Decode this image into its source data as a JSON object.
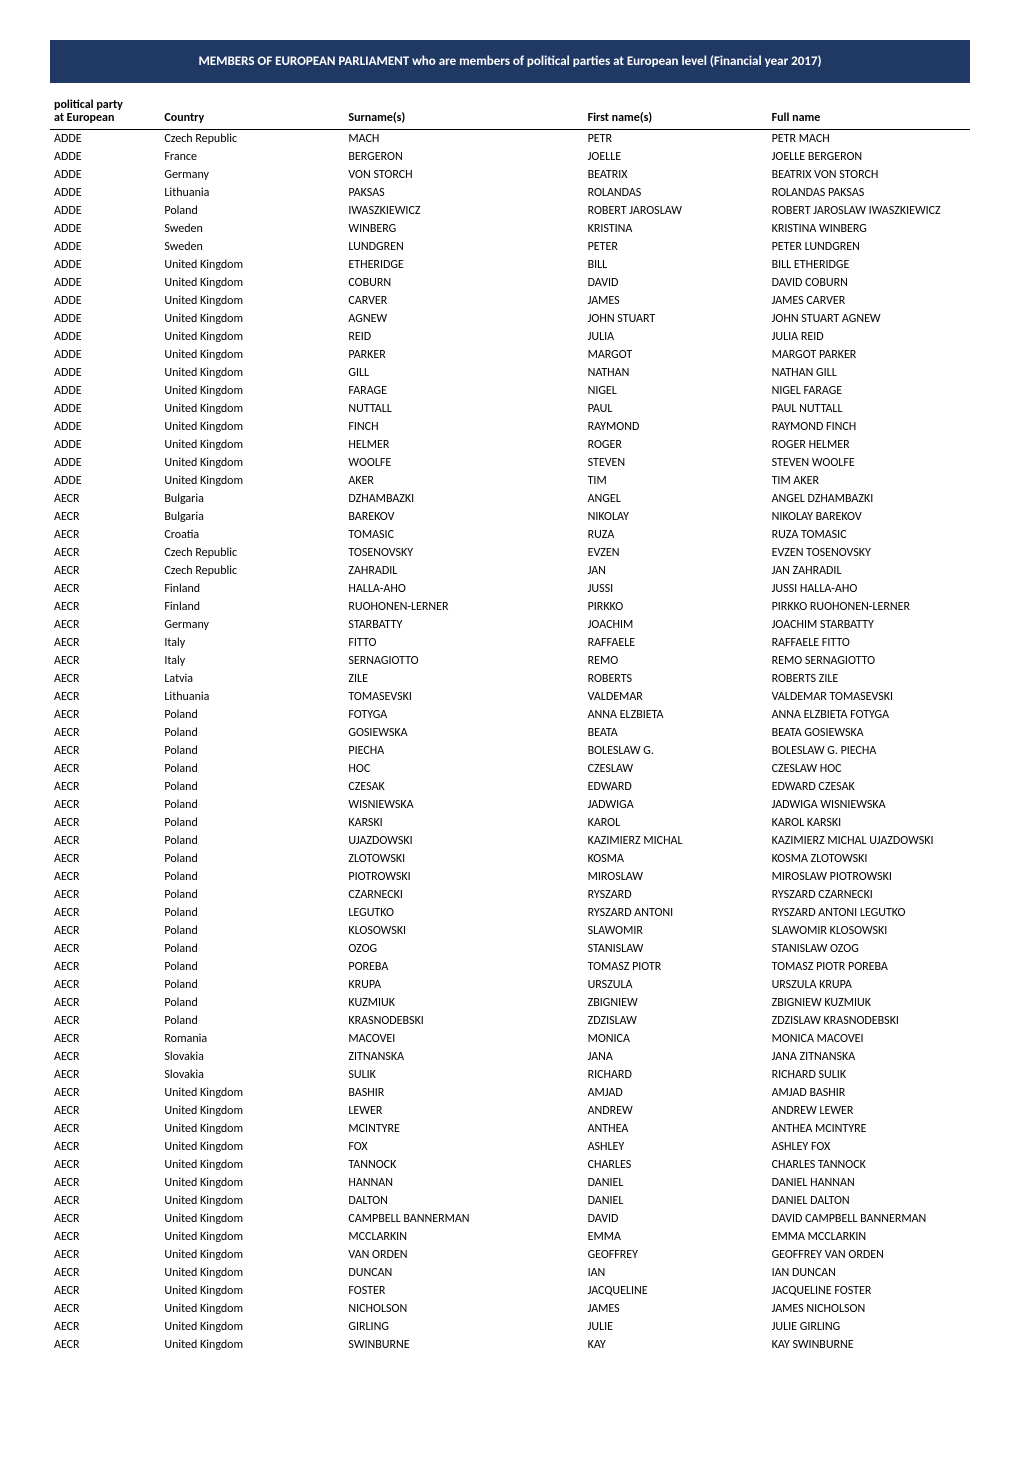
{
  "banner": {
    "text": "MEMBERS OF EUROPEAN PARLIAMENT who are members of political parties at European level (Financial year 2017)",
    "background_color": "#203864",
    "text_color": "#ffffff",
    "font_size_pt": 10,
    "font_weight": "bold"
  },
  "table": {
    "font_size_pt": 9,
    "header_border_color": "#000000",
    "columns": [
      {
        "key": "party",
        "label_line1": "political party",
        "label_line2": "at European",
        "width_pct": 12
      },
      {
        "key": "country",
        "label": "Country",
        "width_pct": 20
      },
      {
        "key": "surname",
        "label": "Surname(s)",
        "width_pct": 26
      },
      {
        "key": "firstname",
        "label": "First name(s)",
        "width_pct": 20
      },
      {
        "key": "fullname",
        "label": "Full name",
        "width_pct": 22
      }
    ],
    "rows": [
      [
        "ADDE",
        "Czech Republic",
        "MACH",
        "PETR",
        "PETR MACH"
      ],
      [
        "ADDE",
        "France",
        "BERGERON",
        "JOELLE",
        "JOELLE BERGERON"
      ],
      [
        "ADDE",
        "Germany",
        "VON STORCH",
        "BEATRIX",
        "BEATRIX VON STORCH"
      ],
      [
        "ADDE",
        "Lithuania",
        "PAKSAS",
        "ROLANDAS",
        "ROLANDAS PAKSAS"
      ],
      [
        "ADDE",
        "Poland",
        "IWASZKIEWICZ",
        "ROBERT JAROSLAW",
        "ROBERT JAROSLAW IWASZKIEWICZ"
      ],
      [
        "ADDE",
        "Sweden",
        "WINBERG",
        "KRISTINA",
        "KRISTINA WINBERG"
      ],
      [
        "ADDE",
        "Sweden",
        "LUNDGREN",
        "PETER",
        "PETER LUNDGREN"
      ],
      [
        "ADDE",
        "United Kingdom",
        "ETHERIDGE",
        "BILL",
        "BILL ETHERIDGE"
      ],
      [
        "ADDE",
        "United Kingdom",
        "COBURN",
        "DAVID",
        "DAVID COBURN"
      ],
      [
        "ADDE",
        "United Kingdom",
        "CARVER",
        "JAMES",
        "JAMES CARVER"
      ],
      [
        "ADDE",
        "United Kingdom",
        "AGNEW",
        "JOHN STUART",
        "JOHN STUART AGNEW"
      ],
      [
        "ADDE",
        "United Kingdom",
        "REID",
        "JULIA",
        "JULIA REID"
      ],
      [
        "ADDE",
        "United Kingdom",
        "PARKER",
        "MARGOT",
        "MARGOT PARKER"
      ],
      [
        "ADDE",
        "United Kingdom",
        "GILL",
        "NATHAN",
        "NATHAN GILL"
      ],
      [
        "ADDE",
        "United Kingdom",
        "FARAGE",
        "NIGEL",
        "NIGEL FARAGE"
      ],
      [
        "ADDE",
        "United Kingdom",
        "NUTTALL",
        "PAUL",
        "PAUL NUTTALL"
      ],
      [
        "ADDE",
        "United Kingdom",
        "FINCH",
        "RAYMOND",
        "RAYMOND FINCH"
      ],
      [
        "ADDE",
        "United Kingdom",
        "HELMER",
        "ROGER",
        "ROGER HELMER"
      ],
      [
        "ADDE",
        "United Kingdom",
        "WOOLFE",
        "STEVEN",
        "STEVEN WOOLFE"
      ],
      [
        "ADDE",
        "United Kingdom",
        "AKER",
        "TIM",
        "TIM AKER"
      ],
      [
        "AECR",
        "Bulgaria",
        "DZHAMBAZKI",
        "ANGEL",
        "ANGEL DZHAMBAZKI"
      ],
      [
        "AECR",
        "Bulgaria",
        "BAREKOV",
        "NIKOLAY",
        "NIKOLAY BAREKOV"
      ],
      [
        "AECR",
        "Croatia",
        "TOMASIC",
        "RUZA",
        "RUZA TOMASIC"
      ],
      [
        "AECR",
        "Czech Republic",
        "TOSENOVSKY",
        "EVZEN",
        "EVZEN TOSENOVSKY"
      ],
      [
        "AECR",
        "Czech Republic",
        "ZAHRADIL",
        "JAN",
        "JAN ZAHRADIL"
      ],
      [
        "AECR",
        "Finland",
        "HALLA-AHO",
        "JUSSI",
        "JUSSI HALLA-AHO"
      ],
      [
        "AECR",
        "Finland",
        "RUOHONEN-LERNER",
        "PIRKKO",
        "PIRKKO RUOHONEN-LERNER"
      ],
      [
        "AECR",
        "Germany",
        "STARBATTY",
        "JOACHIM",
        "JOACHIM STARBATTY"
      ],
      [
        "AECR",
        "Italy",
        "FITTO",
        "RAFFAELE",
        "RAFFAELE FITTO"
      ],
      [
        "AECR",
        "Italy",
        "SERNAGIOTTO",
        "REMO",
        "REMO SERNAGIOTTO"
      ],
      [
        "AECR",
        "Latvia",
        "ZILE",
        "ROBERTS",
        "ROBERTS ZILE"
      ],
      [
        "AECR",
        "Lithuania",
        "TOMASEVSKI",
        "VALDEMAR",
        "VALDEMAR TOMASEVSKI"
      ],
      [
        "AECR",
        "Poland",
        "FOTYGA",
        "ANNA ELZBIETA",
        "ANNA ELZBIETA FOTYGA"
      ],
      [
        "AECR",
        "Poland",
        "GOSIEWSKA",
        "BEATA",
        "BEATA GOSIEWSKA"
      ],
      [
        "AECR",
        "Poland",
        "PIECHA",
        "BOLESLAW G.",
        "BOLESLAW G. PIECHA"
      ],
      [
        "AECR",
        "Poland",
        "HOC",
        "CZESLAW",
        "CZESLAW HOC"
      ],
      [
        "AECR",
        "Poland",
        "CZESAK",
        "EDWARD",
        "EDWARD CZESAK"
      ],
      [
        "AECR",
        "Poland",
        "WISNIEWSKA",
        "JADWIGA",
        "JADWIGA WISNIEWSKA"
      ],
      [
        "AECR",
        "Poland",
        "KARSKI",
        "KAROL",
        "KAROL KARSKI"
      ],
      [
        "AECR",
        "Poland",
        "UJAZDOWSKI",
        "KAZIMIERZ MICHAL",
        "KAZIMIERZ MICHAL UJAZDOWSKI"
      ],
      [
        "AECR",
        "Poland",
        "ZLOTOWSKI",
        "KOSMA",
        "KOSMA ZLOTOWSKI"
      ],
      [
        "AECR",
        "Poland",
        "PIOTROWSKI",
        "MIROSLAW",
        "MIROSLAW PIOTROWSKI"
      ],
      [
        "AECR",
        "Poland",
        "CZARNECKI",
        "RYSZARD",
        "RYSZARD CZARNECKI"
      ],
      [
        "AECR",
        "Poland",
        "LEGUTKO",
        "RYSZARD ANTONI",
        "RYSZARD ANTONI LEGUTKO"
      ],
      [
        "AECR",
        "Poland",
        "KLOSOWSKI",
        "SLAWOMIR",
        "SLAWOMIR KLOSOWSKI"
      ],
      [
        "AECR",
        "Poland",
        "OZOG",
        "STANISLAW",
        "STANISLAW OZOG"
      ],
      [
        "AECR",
        "Poland",
        "POREBA",
        "TOMASZ PIOTR",
        "TOMASZ PIOTR POREBA"
      ],
      [
        "AECR",
        "Poland",
        "KRUPA",
        "URSZULA",
        "URSZULA KRUPA"
      ],
      [
        "AECR",
        "Poland",
        "KUZMIUK",
        "ZBIGNIEW",
        "ZBIGNIEW KUZMIUK"
      ],
      [
        "AECR",
        "Poland",
        "KRASNODEBSKI",
        "ZDZISLAW",
        "ZDZISLAW KRASNODEBSKI"
      ],
      [
        "AECR",
        "Romania",
        "MACOVEI",
        "MONICA",
        "MONICA MACOVEI"
      ],
      [
        "AECR",
        "Slovakia",
        "ZITNANSKA",
        "JANA",
        "JANA ZITNANSKA"
      ],
      [
        "AECR",
        "Slovakia",
        "SULIK",
        "RICHARD",
        "RICHARD SULIK"
      ],
      [
        "AECR",
        "United Kingdom",
        "BASHIR",
        "AMJAD",
        "AMJAD BASHIR"
      ],
      [
        "AECR",
        "United Kingdom",
        "LEWER",
        "ANDREW",
        "ANDREW LEWER"
      ],
      [
        "AECR",
        "United Kingdom",
        "MCINTYRE",
        "ANTHEA",
        "ANTHEA MCINTYRE"
      ],
      [
        "AECR",
        "United Kingdom",
        "FOX",
        "ASHLEY",
        "ASHLEY FOX"
      ],
      [
        "AECR",
        "United Kingdom",
        "TANNOCK",
        "CHARLES",
        "CHARLES TANNOCK"
      ],
      [
        "AECR",
        "United Kingdom",
        "HANNAN",
        "DANIEL",
        "DANIEL HANNAN"
      ],
      [
        "AECR",
        "United Kingdom",
        "DALTON",
        "DANIEL",
        "DANIEL DALTON"
      ],
      [
        "AECR",
        "United Kingdom",
        "CAMPBELL BANNERMAN",
        "DAVID",
        "DAVID CAMPBELL BANNERMAN"
      ],
      [
        "AECR",
        "United Kingdom",
        "MCCLARKIN",
        "EMMA",
        "EMMA MCCLARKIN"
      ],
      [
        "AECR",
        "United Kingdom",
        "VAN ORDEN",
        "GEOFFREY",
        "GEOFFREY VAN ORDEN"
      ],
      [
        "AECR",
        "United Kingdom",
        "DUNCAN",
        "IAN",
        "IAN DUNCAN"
      ],
      [
        "AECR",
        "United Kingdom",
        "FOSTER",
        "JACQUELINE",
        "JACQUELINE FOSTER"
      ],
      [
        "AECR",
        "United Kingdom",
        "NICHOLSON",
        "JAMES",
        "JAMES NICHOLSON"
      ],
      [
        "AECR",
        "United Kingdom",
        "GIRLING",
        "JULIE",
        "JULIE GIRLING"
      ],
      [
        "AECR",
        "United Kingdom",
        "SWINBURNE",
        "KAY",
        "KAY SWINBURNE"
      ]
    ]
  }
}
